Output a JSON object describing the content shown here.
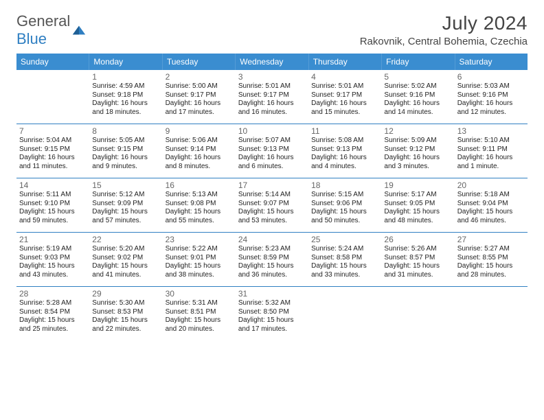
{
  "logo": {
    "word1": "General",
    "word2": "Blue"
  },
  "title": "July 2024",
  "location": "Rakovnik, Central Bohemia, Czechia",
  "colors": {
    "header_bg": "#3a8dd0",
    "header_text": "#ffffff",
    "rule": "#2f7fc2",
    "title_text": "#444444",
    "day_text": "#666666",
    "body_text": "#222222",
    "logo_gray": "#555555",
    "logo_blue": "#2f7fc2",
    "page_bg": "#ffffff"
  },
  "typography": {
    "title_pt": 28,
    "location_pt": 15,
    "dow_pt": 12,
    "daynum_pt": 12,
    "body_pt": 10
  },
  "days_of_week": [
    "Sunday",
    "Monday",
    "Tuesday",
    "Wednesday",
    "Thursday",
    "Friday",
    "Saturday"
  ],
  "weeks": [
    [
      {},
      {
        "num": "1",
        "sunrise": "Sunrise: 4:59 AM",
        "sunset": "Sunset: 9:18 PM",
        "day1": "Daylight: 16 hours",
        "day2": "and 18 minutes."
      },
      {
        "num": "2",
        "sunrise": "Sunrise: 5:00 AM",
        "sunset": "Sunset: 9:17 PM",
        "day1": "Daylight: 16 hours",
        "day2": "and 17 minutes."
      },
      {
        "num": "3",
        "sunrise": "Sunrise: 5:01 AM",
        "sunset": "Sunset: 9:17 PM",
        "day1": "Daylight: 16 hours",
        "day2": "and 16 minutes."
      },
      {
        "num": "4",
        "sunrise": "Sunrise: 5:01 AM",
        "sunset": "Sunset: 9:17 PM",
        "day1": "Daylight: 16 hours",
        "day2": "and 15 minutes."
      },
      {
        "num": "5",
        "sunrise": "Sunrise: 5:02 AM",
        "sunset": "Sunset: 9:16 PM",
        "day1": "Daylight: 16 hours",
        "day2": "and 14 minutes."
      },
      {
        "num": "6",
        "sunrise": "Sunrise: 5:03 AM",
        "sunset": "Sunset: 9:16 PM",
        "day1": "Daylight: 16 hours",
        "day2": "and 12 minutes."
      }
    ],
    [
      {
        "num": "7",
        "sunrise": "Sunrise: 5:04 AM",
        "sunset": "Sunset: 9:15 PM",
        "day1": "Daylight: 16 hours",
        "day2": "and 11 minutes."
      },
      {
        "num": "8",
        "sunrise": "Sunrise: 5:05 AM",
        "sunset": "Sunset: 9:15 PM",
        "day1": "Daylight: 16 hours",
        "day2": "and 9 minutes."
      },
      {
        "num": "9",
        "sunrise": "Sunrise: 5:06 AM",
        "sunset": "Sunset: 9:14 PM",
        "day1": "Daylight: 16 hours",
        "day2": "and 8 minutes."
      },
      {
        "num": "10",
        "sunrise": "Sunrise: 5:07 AM",
        "sunset": "Sunset: 9:13 PM",
        "day1": "Daylight: 16 hours",
        "day2": "and 6 minutes."
      },
      {
        "num": "11",
        "sunrise": "Sunrise: 5:08 AM",
        "sunset": "Sunset: 9:13 PM",
        "day1": "Daylight: 16 hours",
        "day2": "and 4 minutes."
      },
      {
        "num": "12",
        "sunrise": "Sunrise: 5:09 AM",
        "sunset": "Sunset: 9:12 PM",
        "day1": "Daylight: 16 hours",
        "day2": "and 3 minutes."
      },
      {
        "num": "13",
        "sunrise": "Sunrise: 5:10 AM",
        "sunset": "Sunset: 9:11 PM",
        "day1": "Daylight: 16 hours",
        "day2": "and 1 minute."
      }
    ],
    [
      {
        "num": "14",
        "sunrise": "Sunrise: 5:11 AM",
        "sunset": "Sunset: 9:10 PM",
        "day1": "Daylight: 15 hours",
        "day2": "and 59 minutes."
      },
      {
        "num": "15",
        "sunrise": "Sunrise: 5:12 AM",
        "sunset": "Sunset: 9:09 PM",
        "day1": "Daylight: 15 hours",
        "day2": "and 57 minutes."
      },
      {
        "num": "16",
        "sunrise": "Sunrise: 5:13 AM",
        "sunset": "Sunset: 9:08 PM",
        "day1": "Daylight: 15 hours",
        "day2": "and 55 minutes."
      },
      {
        "num": "17",
        "sunrise": "Sunrise: 5:14 AM",
        "sunset": "Sunset: 9:07 PM",
        "day1": "Daylight: 15 hours",
        "day2": "and 53 minutes."
      },
      {
        "num": "18",
        "sunrise": "Sunrise: 5:15 AM",
        "sunset": "Sunset: 9:06 PM",
        "day1": "Daylight: 15 hours",
        "day2": "and 50 minutes."
      },
      {
        "num": "19",
        "sunrise": "Sunrise: 5:17 AM",
        "sunset": "Sunset: 9:05 PM",
        "day1": "Daylight: 15 hours",
        "day2": "and 48 minutes."
      },
      {
        "num": "20",
        "sunrise": "Sunrise: 5:18 AM",
        "sunset": "Sunset: 9:04 PM",
        "day1": "Daylight: 15 hours",
        "day2": "and 46 minutes."
      }
    ],
    [
      {
        "num": "21",
        "sunrise": "Sunrise: 5:19 AM",
        "sunset": "Sunset: 9:03 PM",
        "day1": "Daylight: 15 hours",
        "day2": "and 43 minutes."
      },
      {
        "num": "22",
        "sunrise": "Sunrise: 5:20 AM",
        "sunset": "Sunset: 9:02 PM",
        "day1": "Daylight: 15 hours",
        "day2": "and 41 minutes."
      },
      {
        "num": "23",
        "sunrise": "Sunrise: 5:22 AM",
        "sunset": "Sunset: 9:01 PM",
        "day1": "Daylight: 15 hours",
        "day2": "and 38 minutes."
      },
      {
        "num": "24",
        "sunrise": "Sunrise: 5:23 AM",
        "sunset": "Sunset: 8:59 PM",
        "day1": "Daylight: 15 hours",
        "day2": "and 36 minutes."
      },
      {
        "num": "25",
        "sunrise": "Sunrise: 5:24 AM",
        "sunset": "Sunset: 8:58 PM",
        "day1": "Daylight: 15 hours",
        "day2": "and 33 minutes."
      },
      {
        "num": "26",
        "sunrise": "Sunrise: 5:26 AM",
        "sunset": "Sunset: 8:57 PM",
        "day1": "Daylight: 15 hours",
        "day2": "and 31 minutes."
      },
      {
        "num": "27",
        "sunrise": "Sunrise: 5:27 AM",
        "sunset": "Sunset: 8:55 PM",
        "day1": "Daylight: 15 hours",
        "day2": "and 28 minutes."
      }
    ],
    [
      {
        "num": "28",
        "sunrise": "Sunrise: 5:28 AM",
        "sunset": "Sunset: 8:54 PM",
        "day1": "Daylight: 15 hours",
        "day2": "and 25 minutes."
      },
      {
        "num": "29",
        "sunrise": "Sunrise: 5:30 AM",
        "sunset": "Sunset: 8:53 PM",
        "day1": "Daylight: 15 hours",
        "day2": "and 22 minutes."
      },
      {
        "num": "30",
        "sunrise": "Sunrise: 5:31 AM",
        "sunset": "Sunset: 8:51 PM",
        "day1": "Daylight: 15 hours",
        "day2": "and 20 minutes."
      },
      {
        "num": "31",
        "sunrise": "Sunrise: 5:32 AM",
        "sunset": "Sunset: 8:50 PM",
        "day1": "Daylight: 15 hours",
        "day2": "and 17 minutes."
      },
      {},
      {},
      {}
    ]
  ]
}
